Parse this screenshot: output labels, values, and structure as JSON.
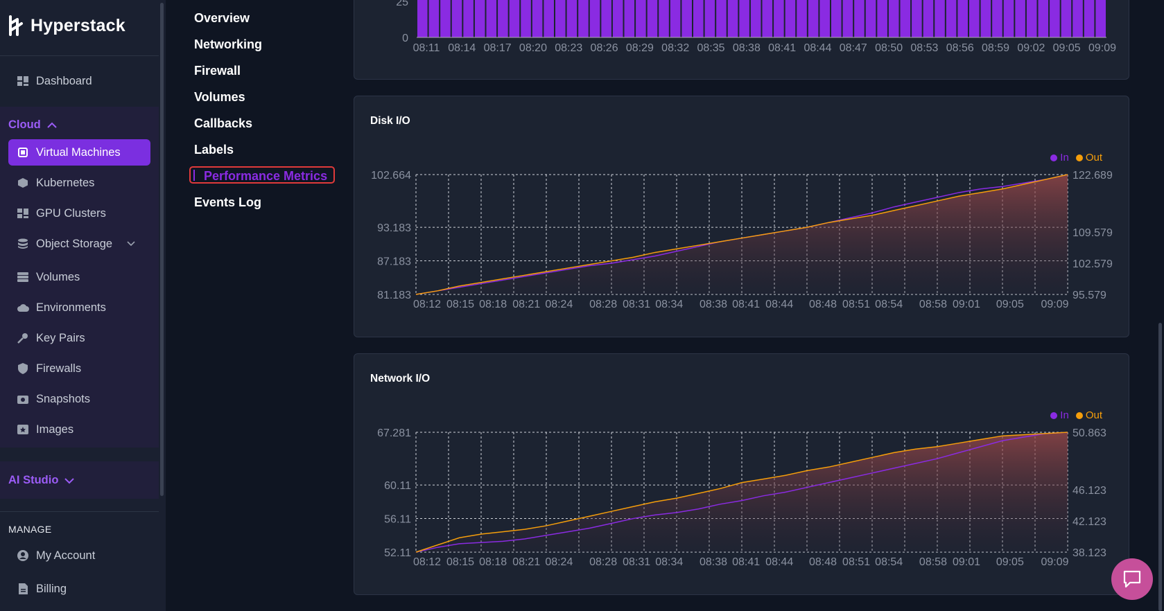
{
  "brand": {
    "name": "Hyperstack"
  },
  "sidebar": {
    "dashboard": "Dashboard",
    "cloud_group": "Cloud",
    "items": [
      {
        "label": "Virtual Machines",
        "icon": "chip-icon"
      },
      {
        "label": "Kubernetes",
        "icon": "cube-icon"
      },
      {
        "label": "GPU Clusters",
        "icon": "cluster-icon"
      },
      {
        "label": "Object Storage",
        "icon": "database-icon"
      },
      {
        "label": "Volumes",
        "icon": "disk-icon"
      },
      {
        "label": "Environments",
        "icon": "cloud-icon"
      },
      {
        "label": "Key Pairs",
        "icon": "key-icon"
      },
      {
        "label": "Firewalls",
        "icon": "shield-icon"
      },
      {
        "label": "Snapshots",
        "icon": "camera-icon"
      },
      {
        "label": "Images",
        "icon": "image-icon"
      }
    ],
    "ai_group": "AI Studio",
    "manage_label": "MANAGE",
    "manage_items": [
      {
        "label": "My Account",
        "icon": "user-icon"
      },
      {
        "label": "Billing",
        "icon": "document-icon"
      }
    ]
  },
  "subnav": {
    "items": [
      "Overview",
      "Networking",
      "Firewall",
      "Volumes",
      "Callbacks",
      "Labels",
      "Performance Metrics",
      "Events Log"
    ],
    "active": "Performance Metrics"
  },
  "colors": {
    "in": "#8a2be2",
    "out": "#f59e0b",
    "accent": "#7b2fe0"
  },
  "top_chart": {
    "y_ticks": [
      "25",
      "0"
    ],
    "x_ticks": [
      "08:11",
      "08:14",
      "08:17",
      "08:20",
      "08:23",
      "08:26",
      "08:29",
      "08:32",
      "08:35",
      "08:38",
      "08:41",
      "08:44",
      "08:47",
      "08:50",
      "08:53",
      "08:56",
      "08:59",
      "09:02",
      "09:05",
      "09:09"
    ]
  },
  "chart_data": [
    {
      "type": "area",
      "title": "Disk I/O",
      "legend": [
        "In",
        "Out"
      ],
      "y_left_ticks": [
        "102.664",
        "93.183",
        "87.183",
        "81.183"
      ],
      "y_right_ticks": [
        "122.689",
        "109.579",
        "102.579",
        "95.579"
      ],
      "x_ticks": [
        "08:12",
        "08:15",
        "08:18",
        "08:21",
        "08:24",
        "08:28",
        "08:31",
        "08:34",
        "08:38",
        "08:41",
        "08:44",
        "08:48",
        "08:51",
        "08:54",
        "08:58",
        "09:01",
        "09:05",
        "09:09"
      ],
      "series": [
        {
          "name": "In",
          "values": [
            0,
            0.03,
            0.06,
            0.09,
            0.12,
            0.15,
            0.18,
            0.21,
            0.24,
            0.26,
            0.29,
            0.32,
            0.36,
            0.4,
            0.44,
            0.47,
            0.5,
            0.53,
            0.56,
            0.6,
            0.64,
            0.68,
            0.73,
            0.77,
            0.81,
            0.85,
            0.88,
            0.9,
            0.93,
            0.96,
            1.0
          ]
        },
        {
          "name": "Out",
          "values": [
            0,
            0.03,
            0.07,
            0.1,
            0.13,
            0.16,
            0.19,
            0.22,
            0.25,
            0.28,
            0.31,
            0.35,
            0.38,
            0.41,
            0.44,
            0.47,
            0.5,
            0.53,
            0.56,
            0.6,
            0.63,
            0.66,
            0.7,
            0.74,
            0.78,
            0.82,
            0.85,
            0.88,
            0.92,
            0.96,
            1.0
          ]
        }
      ]
    },
    {
      "type": "area",
      "title": "Network I/O",
      "legend": [
        "In",
        "Out"
      ],
      "y_left_ticks": [
        "67.281",
        "60.11",
        "56.11",
        "52.11"
      ],
      "y_right_ticks": [
        "50.863",
        "46.123",
        "42.123",
        "38.123"
      ],
      "x_ticks": [
        "08:12",
        "08:15",
        "08:18",
        "08:21",
        "08:24",
        "08:28",
        "08:31",
        "08:34",
        "08:38",
        "08:41",
        "08:44",
        "08:48",
        "08:51",
        "08:54",
        "08:58",
        "09:01",
        "09:05",
        "09:09"
      ],
      "series": [
        {
          "name": "In",
          "values": [
            0,
            0.04,
            0.07,
            0.08,
            0.09,
            0.11,
            0.14,
            0.17,
            0.2,
            0.24,
            0.28,
            0.31,
            0.33,
            0.36,
            0.4,
            0.43,
            0.47,
            0.5,
            0.54,
            0.58,
            0.62,
            0.66,
            0.7,
            0.74,
            0.78,
            0.83,
            0.88,
            0.93,
            0.96,
            0.99,
            1.0
          ]
        },
        {
          "name": "Out",
          "values": [
            0,
            0.06,
            0.12,
            0.15,
            0.17,
            0.19,
            0.22,
            0.26,
            0.3,
            0.34,
            0.38,
            0.42,
            0.45,
            0.49,
            0.53,
            0.58,
            0.61,
            0.64,
            0.68,
            0.71,
            0.75,
            0.79,
            0.83,
            0.86,
            0.88,
            0.91,
            0.94,
            0.97,
            0.98,
            0.99,
            1.0
          ]
        }
      ]
    }
  ]
}
